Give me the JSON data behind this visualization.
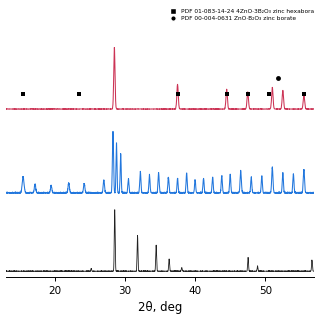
{
  "title": "",
  "xlabel": "2θ, deg",
  "xlim": [
    13,
    57
  ],
  "xticks": [
    20,
    30,
    40,
    50
  ],
  "legend": [
    {
      "label": "PDF 01-083-14-24 4ZnO·3B₂O₃ zinc hexabora",
      "marker": "s",
      "color": "black"
    },
    {
      "label": "PDF 00-004-0631 ZnO·B₂O₃ zinc borate",
      "marker": "o",
      "color": "black"
    }
  ],
  "curve_colors": [
    "#222222",
    "#2277dd",
    "#cc3355"
  ],
  "offsets": [
    0.0,
    0.28,
    0.58
  ],
  "ylim": [
    -0.02,
    0.95
  ],
  "background_color": "#ffffff",
  "square_markers_x": [
    15.5,
    23.5,
    37.5,
    44.5,
    47.5,
    50.5,
    55.5
  ],
  "circle_markers_x": [
    51.8
  ],
  "figsize": [
    3.2,
    3.2
  ],
  "dpi": 100
}
